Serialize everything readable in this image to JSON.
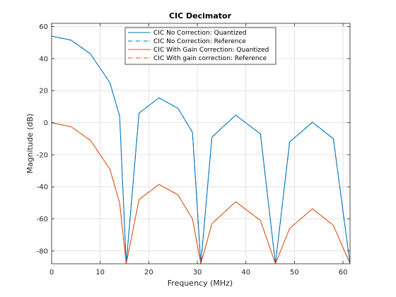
{
  "chart_data": {
    "type": "line",
    "title": "CIC Decimator",
    "xlabel": "Frequency (MHz)",
    "ylabel": "Magnitude (dB)",
    "xlim": [
      0,
      61.44
    ],
    "ylim": [
      -88,
      62
    ],
    "xticks": [
      0,
      10,
      20,
      30,
      40,
      50,
      60
    ],
    "yticks": [
      -80,
      -60,
      -40,
      -20,
      0,
      20,
      40,
      60
    ],
    "xtick_labels": [
      "0",
      "10",
      "20",
      "30",
      "40",
      "50",
      "60"
    ],
    "ytick_labels": [
      "-80",
      "-60",
      "-40",
      "-20",
      "0",
      "20",
      "40",
      "60"
    ],
    "grid": true,
    "legend_position": "top-center",
    "series": [
      {
        "name": "CIC No Correction: Quantized",
        "color": "#0072BD",
        "style": "solid",
        "x": [
          0,
          4,
          8,
          12,
          14,
          15.36,
          18,
          22.1,
          26,
          29,
          30.72,
          33,
          37.9,
          43,
          46.08,
          49,
          53.7,
          58,
          61.44
        ],
        "y": [
          54,
          51.5,
          43,
          25,
          4,
          -88,
          6,
          15.5,
          9,
          -6,
          -88,
          -9,
          4.7,
          -7,
          -88,
          -12,
          0.3,
          -10,
          -88
        ]
      },
      {
        "name": "CIC No Correction: Reference",
        "color": "#0072BD",
        "style": "dash-dot",
        "x": [
          0,
          4,
          8,
          12,
          14,
          15.36,
          18,
          22.1,
          26,
          29,
          30.72,
          33,
          37.9,
          43,
          46.08,
          49,
          53.7,
          58,
          61.44
        ],
        "y": [
          54,
          51.5,
          43,
          25,
          4,
          -88,
          6,
          15.5,
          9,
          -6,
          -88,
          -9,
          4.7,
          -7,
          -88,
          -12,
          0.3,
          -10,
          -88
        ]
      },
      {
        "name": "CIC With Gain Correction: Quantized",
        "color": "#D95319",
        "style": "solid",
        "x": [
          0,
          4,
          8,
          12,
          14,
          15.36,
          18,
          22.1,
          26,
          29,
          30.72,
          33,
          37.9,
          43,
          46.08,
          49,
          53.7,
          58,
          61.44
        ],
        "y": [
          0,
          -2.5,
          -11,
          -29,
          -50,
          -88,
          -48,
          -38.5,
          -45,
          -60,
          -88,
          -63,
          -49.3,
          -61,
          -88,
          -66,
          -53.7,
          -64,
          -88
        ]
      },
      {
        "name": "CIC With gain correction: Reference",
        "color": "#D95319",
        "style": "dash-dot",
        "x": [
          0,
          4,
          8,
          12,
          14,
          15.36,
          18,
          22.1,
          26,
          29,
          30.72,
          33,
          37.9,
          43,
          46.08,
          49,
          53.7,
          58,
          61.44
        ],
        "y": [
          0,
          -2.5,
          -11,
          -29,
          -50,
          -88,
          -48,
          -38.5,
          -45,
          -60,
          -88,
          -63,
          -49.3,
          -61,
          -88,
          -66,
          -53.7,
          -64,
          -88
        ]
      }
    ]
  }
}
